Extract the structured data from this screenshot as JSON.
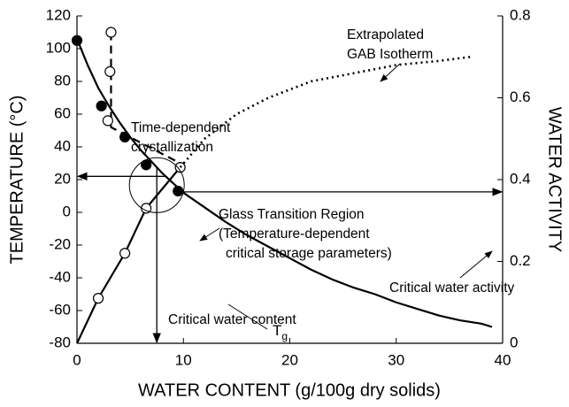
{
  "chart_data": {
    "type": "line",
    "xlabel": "WATER CONTENT (g/100g dry solids)",
    "ylabel": "TEMPERATURE (°C)",
    "y2label": "WATER ACTIVITY",
    "xlim": [
      0,
      40
    ],
    "xticks": [
      0,
      10,
      20,
      30,
      40
    ],
    "ylim": [
      -80,
      120
    ],
    "yticks": [
      -80,
      -60,
      -40,
      -20,
      0,
      20,
      40,
      60,
      80,
      100,
      120
    ],
    "y2lim": [
      0,
      0.8
    ],
    "y2ticks": [
      0,
      0.2,
      0.4,
      0.6,
      0.8
    ],
    "series": [
      {
        "color": "#000",
        "line": "solid",
        "marker": "none",
        "x": [
          0,
          1,
          2,
          3,
          4,
          5,
          6,
          7,
          8,
          9,
          10,
          12,
          14,
          16,
          18,
          20,
          22,
          24,
          26,
          28,
          30,
          32,
          34,
          36,
          38,
          39
        ],
        "values": [
          106,
          90,
          76,
          65,
          55,
          46,
          38,
          31,
          24,
          18,
          12,
          3,
          -6,
          -14,
          -21,
          -28,
          -35,
          -41,
          -46,
          -50,
          -55,
          -59,
          -63,
          -66,
          -68,
          -70
        ]
      },
      {
        "color": "#000",
        "line": "none",
        "marker": "filled",
        "x": [
          0,
          2.3,
          4.5,
          6.5,
          9.5
        ],
        "values": [
          105,
          65,
          46,
          29,
          13
        ]
      },
      {
        "color": "#000",
        "line": "solid",
        "marker": "none",
        "axis": "y2",
        "x": [
          0,
          2,
          4.5,
          6.5,
          9.7
        ],
        "values": [
          0,
          0.11,
          0.22,
          0.33,
          0.43
        ]
      },
      {
        "color": "#000",
        "line": "none",
        "marker": "open",
        "axis": "y2",
        "x": [
          2,
          4.5,
          6.5,
          9.7
        ],
        "values": [
          0.11,
          0.22,
          0.33,
          0.43
        ]
      },
      {
        "color": "#000",
        "line": "dotted",
        "marker": "none",
        "axis": "y2",
        "x": [
          9.7,
          12,
          15,
          18,
          22,
          26,
          30,
          34,
          37
        ],
        "values": [
          0.43,
          0.5,
          0.56,
          0.6,
          0.64,
          0.66,
          0.68,
          0.69,
          0.7
        ]
      },
      {
        "color": "#000",
        "line": "dashed",
        "marker": "none",
        "x": [
          3.2,
          3.2,
          9.7
        ],
        "values": [
          110,
          52,
          30
        ]
      },
      {
        "color": "#000",
        "line": "none",
        "marker": "open",
        "x": [
          3.2,
          3.1,
          2.9
        ],
        "values": [
          110,
          86,
          56
        ]
      }
    ],
    "critical": {
      "temperature": 22,
      "water_activity": 0.37,
      "water_content": 7.5
    },
    "annotations": [
      "Extrapolated",
      "GAB Isotherm",
      "Time-dependent",
      "crystallization",
      "Glass Transition Region",
      "(Temperature-dependent",
      "critical storage parameters)",
      "Critical water activity",
      "Critical water content"
    ],
    "tg_label": {
      "text": "T",
      "sub": "g"
    }
  }
}
